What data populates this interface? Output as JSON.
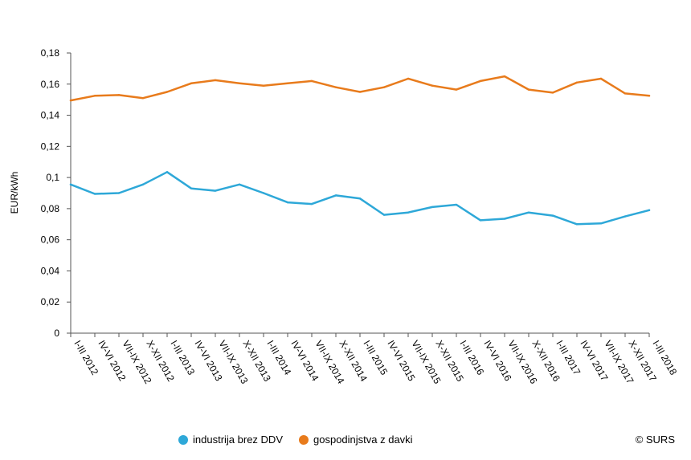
{
  "chart_data": {
    "type": "line",
    "ylabel": "EUR/kWh",
    "ylim": [
      0,
      0.18
    ],
    "yticks": [
      "0",
      "0,02",
      "0,04",
      "0,06",
      "0,08",
      "0,1",
      "0,12",
      "0,14",
      "0,16",
      "0,18"
    ],
    "grid": false,
    "legend_position": "bottom",
    "categories": [
      "I-III 2012",
      "IV-VI 2012",
      "VII-IX 2012",
      "X-XII 2012",
      "I-III 2013",
      "IV-VI 2013",
      "VII-IX 2013",
      "X-XII 2013",
      "I-III 2014",
      "IV-VI 2014",
      "VII-IX 2014",
      "X-XII 2014",
      "I-III 2015",
      "IV-VI 2015",
      "VII-IX 2015",
      "X-XII 2015",
      "I-III 2016",
      "IV-VI 2016",
      "VII-IX 2016",
      "X-XII 2016",
      "I-III 2017",
      "IV-VI 2017",
      "VII-IX 2017",
      "X-XII 2017",
      "I-III 2018"
    ],
    "series": [
      {
        "name": "industrija brez DDV",
        "color": "#2ea8d8",
        "values": [
          0.0955,
          0.0895,
          0.09,
          0.0955,
          0.1035,
          0.093,
          0.0915,
          0.0955,
          0.09,
          0.084,
          0.083,
          0.0885,
          0.0865,
          0.076,
          0.0775,
          0.081,
          0.0825,
          0.0725,
          0.0735,
          0.0775,
          0.0755,
          0.07,
          0.0705,
          0.075,
          0.079
        ]
      },
      {
        "name": "gospodinjstva z davki",
        "color": "#e87b1c",
        "values": [
          0.1495,
          0.1525,
          0.153,
          0.151,
          0.155,
          0.1605,
          0.1625,
          0.1605,
          0.159,
          0.1605,
          0.162,
          0.158,
          0.155,
          0.158,
          0.1635,
          0.159,
          0.1565,
          0.162,
          0.165,
          0.1565,
          0.1545,
          0.161,
          0.1635,
          0.154,
          0.1525
        ]
      }
    ]
  },
  "legend": {
    "item1": "industrija brez DDV",
    "item2": "gospodinjstva z davki"
  },
  "footer": {
    "copyright": "© SURS"
  }
}
